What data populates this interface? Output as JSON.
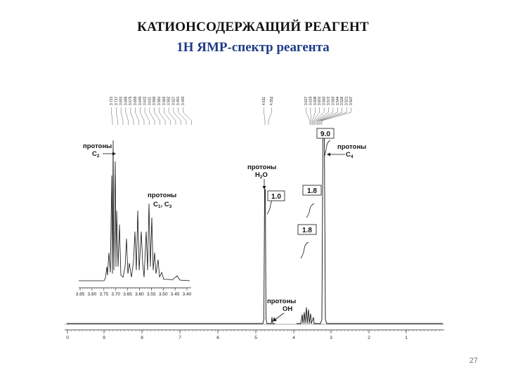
{
  "slide": {
    "title": "КАТИОНСОДЕРЖАЩИЙ РЕАГЕНТ",
    "subtitle": "1Н ЯМР-спектр реагента",
    "page_number": "27"
  },
  "chart_data": {
    "type": "line",
    "x_ticks": [
      "0",
      "9",
      "8",
      "7",
      "6",
      "5",
      "4",
      "3",
      "2",
      "1"
    ],
    "inset_x_ticks": [
      "3.85",
      "3.80",
      "3.75",
      "3.70",
      "3.65",
      "3.60",
      "3.55",
      "3.50",
      "3.45",
      "3.40"
    ],
    "annotations": [
      {
        "line1": "протоны",
        "line2": "C",
        "sub": "2"
      },
      {
        "line1": "протоны",
        "line2": "C",
        "sub": "1",
        "line2b": ", C",
        "sub2": "3"
      },
      {
        "line1": "протоны",
        "line2": "H",
        "sub": "2",
        "line2b": "O"
      },
      {
        "line1": "протоны",
        "line2": "C",
        "sub": "4"
      },
      {
        "line1": "протоны",
        "line2": "OH"
      }
    ],
    "integrals": [
      "9.0",
      "1.0",
      "1.8",
      "1.8"
    ],
    "peak_labels_left": [
      "3.721",
      "3.717",
      "3.691",
      "3.685",
      "3.675",
      "3.655",
      "3.645",
      "3.622",
      "3.611",
      "3.590",
      "3.581",
      "3.562",
      "3.552",
      "3.527",
      "3.461",
      "3.443"
    ],
    "peak_labels_mid": [
      "4.611",
      "4.552"
    ],
    "peak_labels_right": [
      "3.627",
      "3.619",
      "3.608",
      "3.601",
      "3.583",
      "3.572",
      "3.560",
      "3.544",
      "3.536",
      "3.521",
      "3.507"
    ],
    "main_spectrum": [
      {
        "ppm": 4.61,
        "height": 0.72
      },
      {
        "ppm": 4.55,
        "height": 0.04
      },
      {
        "ppm": 3.65,
        "height": 0.06
      },
      {
        "ppm": 3.55,
        "height": 0.05
      },
      {
        "ppm": 3.2,
        "height": 1.0
      }
    ]
  }
}
